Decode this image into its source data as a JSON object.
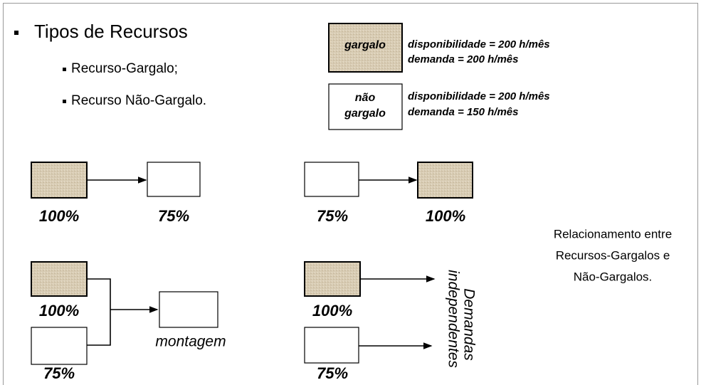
{
  "bullets": {
    "title": "Tipos de Recursos",
    "items": [
      "Recurso-Gargalo;",
      "Recurso Não-Gargalo."
    ]
  },
  "legend": {
    "bottleneck": {
      "label": "gargalo",
      "lines": [
        "disponibilidade = 200 h/mês",
        "demanda = 200 h/mês"
      ]
    },
    "non_bottleneck": {
      "label": [
        "não",
        "gargalo"
      ],
      "lines": [
        "disponibilidade = 200 h/mês",
        "demanda = 150 h/mês"
      ]
    }
  },
  "diagrams": {
    "bottleneck_to_non": [
      "100%",
      "75%"
    ],
    "non_to_bottleneck": [
      "75%",
      "100%"
    ],
    "assembly": {
      "inputs": [
        "100%",
        "75%"
      ],
      "label": "montagem"
    },
    "independent": {
      "inputs": [
        "100%",
        "75%"
      ],
      "label": [
        "Demandas",
        "independentes"
      ]
    }
  },
  "caption": [
    "Relacionamento entre",
    "Recursos-Gargalos e",
    "Não-Gargalos."
  ]
}
